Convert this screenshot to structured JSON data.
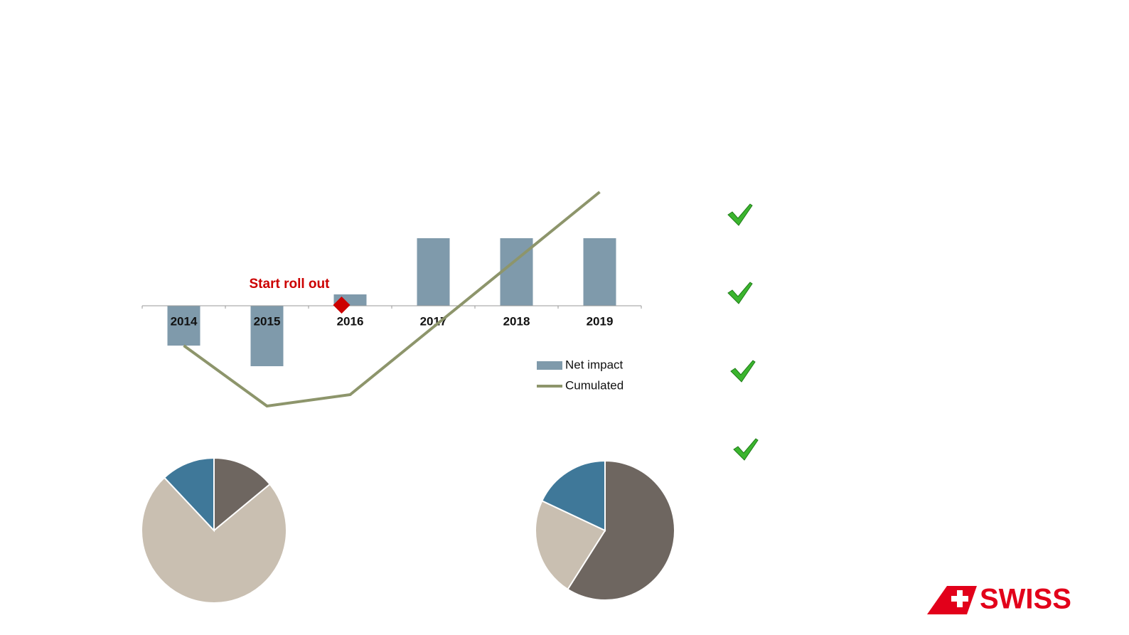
{
  "chart_data": [
    {
      "type": "bar",
      "categories": [
        "2014",
        "2015",
        "2016",
        "2017",
        "2018",
        "2019"
      ],
      "series": [
        {
          "name": "Net impact",
          "type": "bar",
          "color": "#7f9aab",
          "values": [
            -56,
            -85,
            16,
            95,
            95,
            95
          ]
        },
        {
          "name": "Cumulated",
          "type": "line",
          "color": "#8d956b",
          "values": [
            -56,
            -141,
            -125,
            -30,
            65,
            160
          ]
        }
      ],
      "ylim": [
        -160,
        180
      ],
      "annotation": {
        "text": "Start roll out",
        "category": 2,
        "color": "#cc0000"
      }
    },
    {
      "type": "pie",
      "values": [
        14,
        74,
        12
      ],
      "colors": [
        "#6e6660",
        "#c9bfb1",
        "#3f7899"
      ]
    },
    {
      "type": "pie",
      "values": [
        59,
        23,
        18
      ],
      "colors": [
        "#6e6660",
        "#c9bfb1",
        "#3f7899"
      ]
    }
  ],
  "brand": "SWISS"
}
